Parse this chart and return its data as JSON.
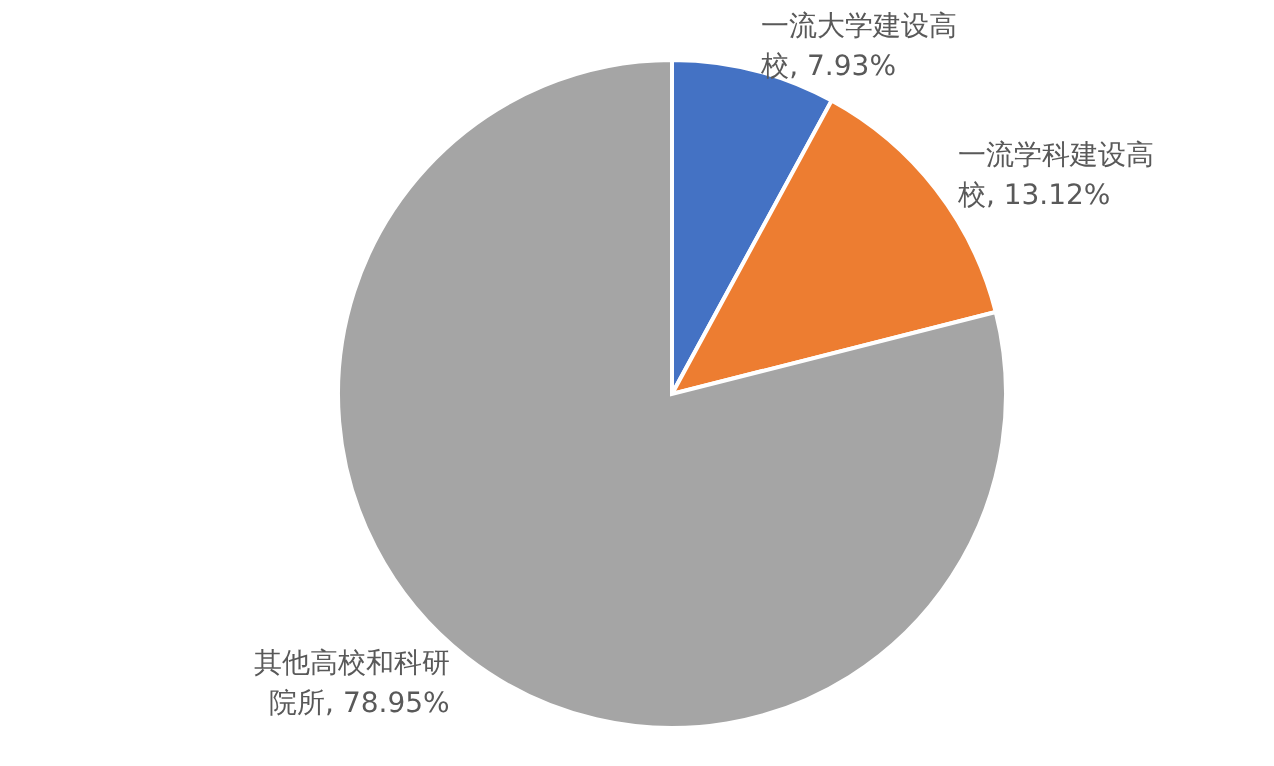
{
  "chart_data": {
    "type": "pie",
    "categories": [
      "一流大学建设高校",
      "一流学科建设高校",
      "其他高校和科研院所"
    ],
    "values": [
      7.93,
      13.12,
      78.95
    ],
    "colors": [
      "#4472c4",
      "#ed7d31",
      "#a5a5a5"
    ],
    "value_labels": [
      "7.93%",
      "13.12%",
      "78.95%"
    ]
  }
}
